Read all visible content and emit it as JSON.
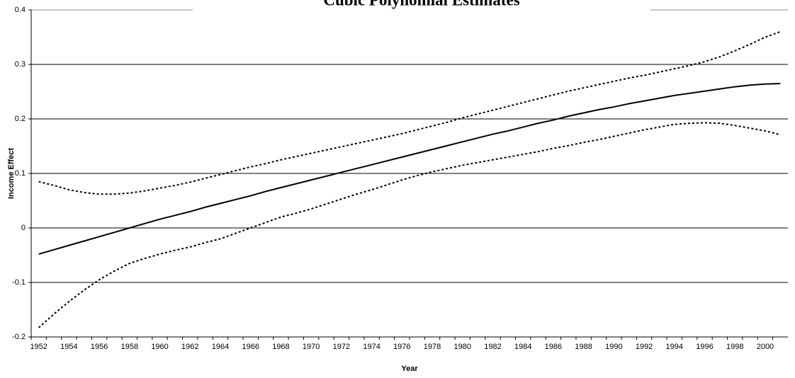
{
  "chart_data": {
    "type": "line",
    "title": "Cubic Polynomial Estimates",
    "y_label": "Income Effect",
    "x_label": "Year",
    "categories": [
      "1952",
      null,
      "1954",
      null,
      "1956",
      null,
      "1958",
      null,
      "1960",
      null,
      "1962",
      null,
      "1964",
      null,
      "1966",
      null,
      "1968",
      null,
      "1970",
      null,
      "1972",
      null,
      "1974",
      null,
      "1976",
      null,
      "1978",
      null,
      "1980",
      null,
      "1982",
      null,
      "1984",
      null,
      "1986",
      null,
      "1988",
      null,
      "1990",
      null,
      "1992",
      null,
      "1994",
      null,
      "1996",
      null,
      "1998",
      null,
      "2000",
      null
    ],
    "series": [
      {
        "color": "#000000",
        "dashed": false,
        "values": [
          -0.048,
          -0.04,
          -0.032,
          -0.024,
          -0.016,
          -0.008,
          0.0,
          0.008,
          0.016,
          0.023,
          0.03,
          0.038,
          0.045,
          0.052,
          0.059,
          0.067,
          0.074,
          0.081,
          0.088,
          0.095,
          0.102,
          0.109,
          0.116,
          0.123,
          0.13,
          0.137,
          0.144,
          0.151,
          0.158,
          0.165,
          0.172,
          0.178,
          0.185,
          0.192,
          0.198,
          0.205,
          0.211,
          0.217,
          0.222,
          0.228,
          0.233,
          0.238,
          0.243,
          0.247,
          0.251,
          0.255,
          0.259,
          0.262,
          0.264,
          0.265
        ]
      },
      {
        "color": "#000000",
        "dashed": true,
        "values": [
          0.085,
          0.078,
          0.07,
          0.065,
          0.062,
          0.062,
          0.064,
          0.068,
          0.073,
          0.078,
          0.084,
          0.091,
          0.098,
          0.105,
          0.112,
          0.118,
          0.125,
          0.131,
          0.137,
          0.143,
          0.149,
          0.155,
          0.161,
          0.167,
          0.173,
          0.18,
          0.187,
          0.194,
          0.202,
          0.209,
          0.216,
          0.223,
          0.23,
          0.237,
          0.244,
          0.251,
          0.257,
          0.263,
          0.269,
          0.275,
          0.28,
          0.286,
          0.292,
          0.298,
          0.305,
          0.314,
          0.325,
          0.337,
          0.35,
          0.36
        ]
      },
      {
        "color": "#000000",
        "dashed": true,
        "values": [
          -0.183,
          -0.158,
          -0.135,
          -0.114,
          -0.095,
          -0.079,
          -0.065,
          -0.056,
          -0.048,
          -0.041,
          -0.035,
          -0.027,
          -0.02,
          -0.01,
          0.0,
          0.01,
          0.02,
          0.027,
          0.035,
          0.044,
          0.053,
          0.062,
          0.07,
          0.079,
          0.088,
          0.096,
          0.103,
          0.109,
          0.115,
          0.12,
          0.125,
          0.13,
          0.135,
          0.14,
          0.146,
          0.151,
          0.157,
          0.162,
          0.168,
          0.174,
          0.18,
          0.185,
          0.19,
          0.192,
          0.193,
          0.192,
          0.188,
          0.183,
          0.178,
          0.171
        ]
      }
    ],
    "ylim": [
      -0.2,
      0.4
    ],
    "yticks": [
      -0.2,
      -0.1,
      0,
      0.1,
      0.2,
      0.3,
      0.4
    ],
    "grid": true
  }
}
